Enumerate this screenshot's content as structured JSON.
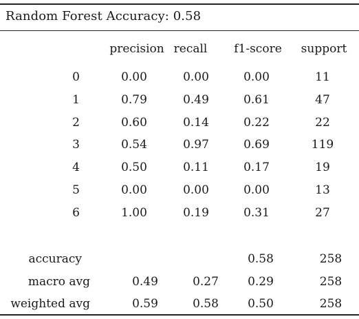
{
  "title": "Random Forest Accuracy: 0.58",
  "columns": [
    "precision",
    "recall",
    "f1-score",
    "support"
  ],
  "rows": [
    {
      "label": "0",
      "precision": "0.00",
      "recall": "0.00",
      "f1": "0.00",
      "support": "11"
    },
    {
      "label": "1",
      "precision": "0.79",
      "recall": "0.49",
      "f1": "0.61",
      "support": "47"
    },
    {
      "label": "2",
      "precision": "0.60",
      "recall": "0.14",
      "f1": "0.22",
      "support": "22"
    },
    {
      "label": "3",
      "precision": "0.54",
      "recall": "0.97",
      "f1": "0.69",
      "support": "119"
    },
    {
      "label": "4",
      "precision": "0.50",
      "recall": "0.11",
      "f1": "0.17",
      "support": "19"
    },
    {
      "label": "5",
      "precision": "0.00",
      "recall": "0.00",
      "f1": "0.00",
      "support": "13"
    },
    {
      "label": "6",
      "precision": "1.00",
      "recall": "0.19",
      "f1": "0.31",
      "support": "27"
    }
  ],
  "summary": [
    {
      "label": "accuracy",
      "precision": "",
      "recall": "",
      "f1": "0.58",
      "support": "258"
    },
    {
      "label": "macro avg",
      "precision": "0.49",
      "recall": "0.27",
      "f1": "0.29",
      "support": "258"
    },
    {
      "label": "weighted avg",
      "precision": "0.59",
      "recall": "0.58",
      "f1": "0.50",
      "support": "258"
    }
  ]
}
